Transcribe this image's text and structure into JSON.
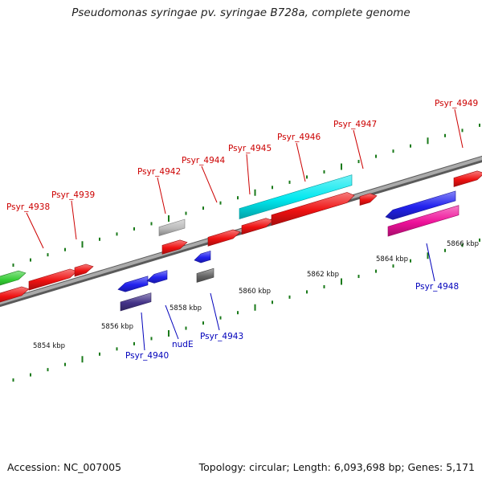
{
  "title": "Pseudomonas syringae pv. syringae B728a, complete genome",
  "footer": {
    "accession": "Accession: NC_007005",
    "topology": "Topology: circular; Length: 6,093,698 bp; Genes: 5,171"
  },
  "colors": {
    "forward_label": "#cc0000",
    "reverse_label": "#0000bb",
    "backbone": "#8c8c8c",
    "tick": "#1a7a1a"
  },
  "scale": {
    "unit": "kbp",
    "labels": [
      {
        "kbp": 5854,
        "text": "5854 kbp"
      },
      {
        "kbp": 5856,
        "text": "5856 kbp"
      },
      {
        "kbp": 5858,
        "text": "5858 kbp"
      },
      {
        "kbp": 5860,
        "text": "5860 kbp"
      },
      {
        "kbp": 5862,
        "text": "5862 kbp"
      },
      {
        "kbp": 5864,
        "text": "5864 kbp"
      },
      {
        "kbp": 5866,
        "text": "5866 kbp"
      }
    ]
  },
  "genes": [
    {
      "name": "Psyr_4938",
      "strand": "forward",
      "color": "#ee1111"
    },
    {
      "name": "Psyr_4939",
      "strand": "forward",
      "color": "#ee1111"
    },
    {
      "name": "Psyr_4942",
      "strand": "forward",
      "color": "#ee1111"
    },
    {
      "name": "Psyr_4944",
      "strand": "forward",
      "color": "#ee1111"
    },
    {
      "name": "Psyr_4945",
      "strand": "forward",
      "color": "#00e8ef"
    },
    {
      "name": "Psyr_4946",
      "strand": "forward",
      "color": "#ee1111"
    },
    {
      "name": "Psyr_4947",
      "strand": "forward",
      "color": "#ee1111"
    },
    {
      "name": "Psyr_4949",
      "strand": "forward",
      "color": "#ee1111"
    },
    {
      "name": "Psyr_4940",
      "strand": "reverse",
      "color": "#2222ee"
    },
    {
      "name": "nudE",
      "strand": "reverse",
      "color": "#2222ee"
    },
    {
      "name": "Psyr_4943",
      "strand": "reverse",
      "color": "#2222ee"
    },
    {
      "name": "Psyr_4948",
      "strand": "reverse",
      "color": "#2222ee"
    }
  ]
}
